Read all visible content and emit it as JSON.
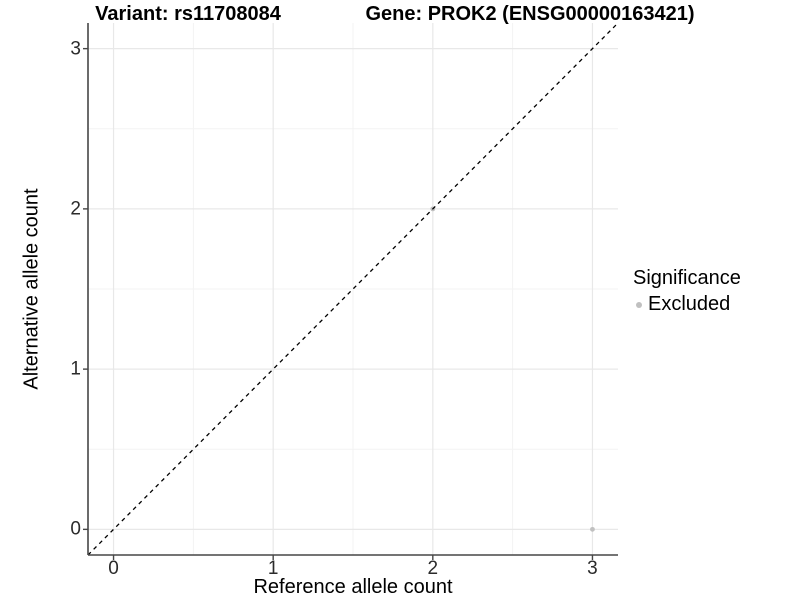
{
  "titles": {
    "variant": "Variant: rs11708084",
    "gene": "Gene: PROK2 (ENSG00000163421)"
  },
  "axes": {
    "x": {
      "label": "Reference allele count",
      "ticks": [
        "0",
        "1",
        "2",
        "3"
      ]
    },
    "y": {
      "label": "Alternative allele count",
      "ticks": [
        "0",
        "1",
        "2",
        "3"
      ]
    }
  },
  "legend": {
    "title": "Significance",
    "items": [
      {
        "label": "Excluded",
        "color": "#c0c0c0"
      }
    ]
  },
  "colors": {
    "background": "#ffffff",
    "grid_major": "#e8e8e8",
    "grid_minor": "#f3f3f3",
    "axis_line": "#464646",
    "reference_line": "#000000",
    "point_excluded": "#c0c0c0",
    "tick_text": "#2b2b2b",
    "title_text": "#000000"
  },
  "chart_data": {
    "type": "scatter",
    "title": "Variant: rs11708084 | Gene: PROK2 (ENSG00000163421)",
    "xlabel": "Reference allele count",
    "ylabel": "Alternative allele count",
    "xlim": [
      -0.16,
      3.16
    ],
    "ylim": [
      -0.16,
      3.16
    ],
    "x_ticks": [
      0,
      1,
      2,
      3
    ],
    "y_ticks": [
      0,
      1,
      2,
      3
    ],
    "x_minor_ticks": [
      0.5,
      1.5,
      2.5
    ],
    "y_minor_ticks": [
      0.5,
      1.5,
      2.5
    ],
    "grid": true,
    "legend_position": "right",
    "legend_title": "Significance",
    "series": [
      {
        "name": "Excluded",
        "color": "#c0c0c0",
        "points": [
          {
            "x": 2,
            "y": 2
          },
          {
            "x": 3,
            "y": 0
          }
        ]
      }
    ],
    "reference_line": {
      "type": "identity",
      "style": "dashed",
      "color": "#000000",
      "from": [
        -0.16,
        -0.16
      ],
      "to": [
        3.16,
        3.16
      ]
    }
  }
}
